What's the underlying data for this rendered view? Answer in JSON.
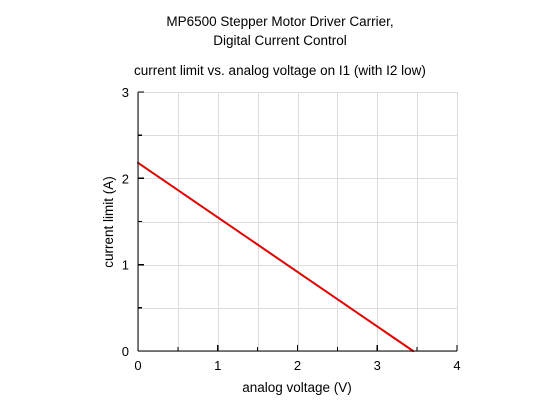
{
  "chart_data": {
    "type": "line",
    "title": "MP6500 Stepper Motor Driver Carrier,",
    "title_line2": "Digital Current Control",
    "subtitle": "current limit vs. analog voltage on I1 (with I2 low)",
    "xlabel": "analog voltage (V)",
    "ylabel": "current limit (A)",
    "xlim": [
      0,
      4
    ],
    "ylim": [
      0,
      3
    ],
    "x_ticks": [
      0,
      1,
      2,
      3,
      4
    ],
    "y_ticks": [
      0,
      1,
      2,
      3
    ],
    "x_tick_labels": [
      "0",
      "1",
      "2",
      "3",
      "4"
    ],
    "y_tick_labels": [
      "0",
      "1",
      "2",
      "3"
    ],
    "x_minor_step": 0.5,
    "y_minor_step": 0.5,
    "grid": true,
    "series": [
      {
        "color": "#e00000",
        "x": [
          0,
          3.45
        ],
        "y": [
          2.18,
          0
        ]
      }
    ]
  }
}
